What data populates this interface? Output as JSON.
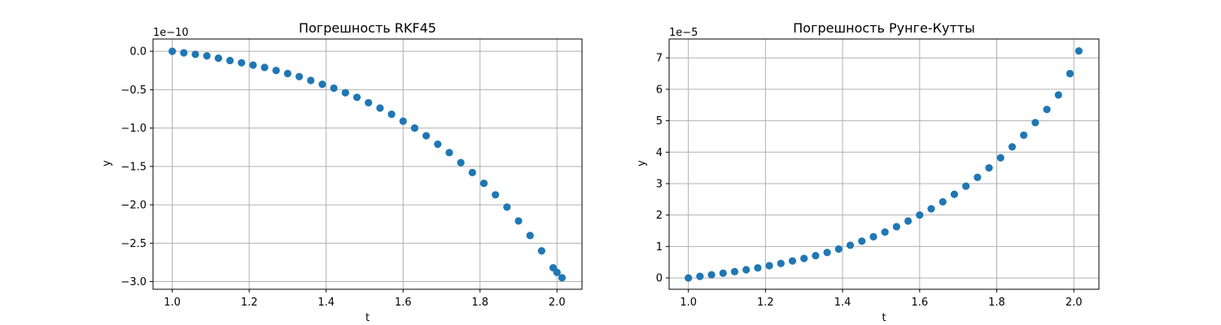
{
  "chart_data": [
    {
      "type": "scatter",
      "title": "Погрешность RKF45",
      "xlabel": "t",
      "ylabel": "y",
      "offset_text": "1e−10",
      "xlim": [
        0.95,
        2.065
      ],
      "ylim": [
        -3.1,
        0.16
      ],
      "xticks": [
        1.0,
        1.2,
        1.4,
        1.6,
        1.8,
        2.0
      ],
      "xtick_labels": [
        "1.0",
        "1.2",
        "1.4",
        "1.6",
        "1.8",
        "2.0"
      ],
      "yticks": [
        0.0,
        -0.5,
        -1.0,
        -1.5,
        -2.0,
        -2.5,
        -3.0
      ],
      "ytick_labels": [
        "0.0",
        "−0.5",
        "−1.0",
        "−1.5",
        "−2.0",
        "−2.5",
        "−3.0"
      ],
      "grid": true,
      "color": "#1f77b4",
      "series": [
        {
          "x": [
            1.0,
            1.03,
            1.06,
            1.09,
            1.12,
            1.15,
            1.18,
            1.21,
            1.24,
            1.27,
            1.3,
            1.33,
            1.36,
            1.39,
            1.42,
            1.45,
            1.48,
            1.51,
            1.54,
            1.57,
            1.6,
            1.63,
            1.66,
            1.69,
            1.72,
            1.75,
            1.78,
            1.81,
            1.84,
            1.87,
            1.9,
            1.93,
            1.96,
            1.99,
            2.0,
            2.013
          ],
          "values": [
            0.0,
            -0.02,
            -0.04,
            -0.06,
            -0.09,
            -0.12,
            -0.15,
            -0.18,
            -0.21,
            -0.25,
            -0.29,
            -0.33,
            -0.38,
            -0.43,
            -0.48,
            -0.54,
            -0.6,
            -0.67,
            -0.74,
            -0.82,
            -0.91,
            -1.0,
            -1.1,
            -1.21,
            -1.32,
            -1.45,
            -1.58,
            -1.72,
            -1.87,
            -2.03,
            -2.21,
            -2.4,
            -2.6,
            -2.82,
            -2.88,
            -2.95
          ]
        }
      ]
    },
    {
      "type": "scatter",
      "title": "Погрешность Рунге-Кутты",
      "xlabel": "t",
      "ylabel": "y",
      "offset_text": "1e−5",
      "xlim": [
        0.95,
        2.065
      ],
      "ylim": [
        -0.36,
        7.6
      ],
      "xticks": [
        1.0,
        1.2,
        1.4,
        1.6,
        1.8,
        2.0
      ],
      "xtick_labels": [
        "1.0",
        "1.2",
        "1.4",
        "1.6",
        "1.8",
        "2.0"
      ],
      "yticks": [
        0,
        1,
        2,
        3,
        4,
        5,
        6,
        7
      ],
      "ytick_labels": [
        "0",
        "1",
        "2",
        "3",
        "4",
        "5",
        "6",
        "7"
      ],
      "grid": true,
      "color": "#1f77b4",
      "series": [
        {
          "x": [
            1.0,
            1.03,
            1.06,
            1.09,
            1.12,
            1.15,
            1.18,
            1.21,
            1.24,
            1.27,
            1.3,
            1.33,
            1.36,
            1.39,
            1.42,
            1.45,
            1.48,
            1.51,
            1.54,
            1.57,
            1.6,
            1.63,
            1.66,
            1.69,
            1.72,
            1.75,
            1.78,
            1.81,
            1.84,
            1.87,
            1.9,
            1.93,
            1.96,
            1.99,
            2.013
          ],
          "values": [
            0.0,
            0.05,
            0.1,
            0.15,
            0.2,
            0.26,
            0.32,
            0.39,
            0.46,
            0.54,
            0.62,
            0.71,
            0.81,
            0.92,
            1.04,
            1.17,
            1.31,
            1.46,
            1.63,
            1.81,
            2.0,
            2.2,
            2.42,
            2.66,
            2.92,
            3.2,
            3.5,
            3.82,
            4.17,
            4.54,
            4.94,
            5.36,
            5.82,
            6.5,
            7.22
          ]
        }
      ]
    }
  ]
}
